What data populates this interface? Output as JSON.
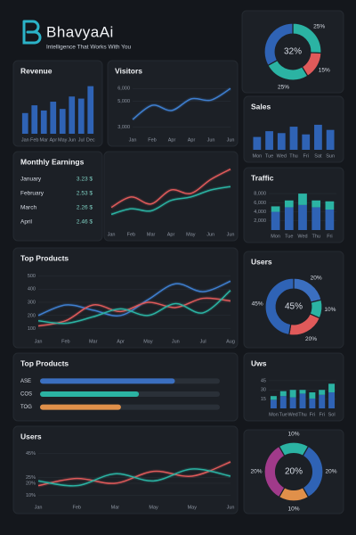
{
  "header": {
    "title": "BhavyaAi",
    "tagline": "Intelligence That Works With You"
  },
  "earnings": {
    "title": "Monthly Earnings",
    "rows": [
      {
        "month": "January",
        "amount": "3.23 $"
      },
      {
        "month": "February",
        "amount": "2.53 $"
      },
      {
        "month": "March",
        "amount": "2.26 $"
      },
      {
        "month": "April",
        "amount": "2.46 $"
      }
    ]
  },
  "chart_data": [
    {
      "type": "pie",
      "center_label": "32%",
      "values": [
        25,
        15,
        25,
        32
      ],
      "value_labels": [
        "25%",
        "15%",
        "25%",
        null
      ],
      "colors": [
        "#2bb3a3",
        "#e05a5a",
        "#2bb3a3",
        "#2f63b5"
      ]
    },
    {
      "type": "bar",
      "title": "Revenue",
      "categories": [
        "Jan",
        "Feb",
        "Mar",
        "Apr",
        "May",
        "Jun",
        "Jul",
        "Dec"
      ],
      "ylim": [
        0,
        100
      ],
      "series": [
        {
          "color": "#2f63b5",
          "values": [
            40,
            55,
            45,
            62,
            48,
            72,
            68,
            92
          ]
        }
      ]
    },
    {
      "type": "line",
      "title": "Visitors",
      "categories": [
        "Jan",
        "Feb",
        "Apr",
        "Apr",
        "Jun",
        "Jun"
      ],
      "ylim": [
        2500,
        6500
      ],
      "yticks": [
        {
          "value": 3000,
          "label": "3,000"
        },
        {
          "value": 5000,
          "label": "5,000"
        },
        {
          "value": 6000,
          "label": "6,000"
        }
      ],
      "series": [
        {
          "color": "#3f7fd0",
          "values": [
            3600,
            4700,
            4300,
            5200,
            5100,
            6000
          ]
        }
      ]
    },
    {
      "type": "bar",
      "title": "Sales",
      "categories": [
        "Mon",
        "Tue",
        "Wed",
        "Thu",
        "Fri",
        "Sat",
        "Sun"
      ],
      "ylim": [
        0,
        100
      ],
      "series": [
        {
          "color": "#2f63b5",
          "values": [
            40,
            58,
            52,
            72,
            48,
            78,
            62
          ]
        }
      ]
    },
    {
      "type": "line",
      "categories": [
        "Jan",
        "Feb",
        "Mar",
        "Apr",
        "May",
        "Jun",
        "Jun"
      ],
      "ylim": [
        0,
        100
      ],
      "series": [
        {
          "color": "#e05a5a",
          "values": [
            30,
            45,
            35,
            55,
            50,
            70,
            85
          ]
        },
        {
          "color": "#2bb3a3",
          "values": [
            20,
            28,
            25,
            40,
            45,
            55,
            60
          ]
        }
      ]
    },
    {
      "type": "bar",
      "title": "Traffic",
      "categories": [
        "Mon",
        "Tue",
        "Wed",
        "Thu",
        "Fri"
      ],
      "ylim": [
        0,
        9000
      ],
      "yticks": [
        {
          "value": 2000,
          "label": "2,000"
        },
        {
          "value": 4000,
          "label": "4,000"
        },
        {
          "value": 6000,
          "label": "6,000"
        },
        {
          "value": 8000,
          "label": "8,000"
        }
      ],
      "series": [
        {
          "color": "#2f63b5",
          "values": [
            4000,
            5000,
            5500,
            5000,
            4500
          ]
        },
        {
          "color": "#2bb3a3",
          "values": [
            1200,
            1500,
            2500,
            1500,
            1800
          ]
        }
      ]
    },
    {
      "type": "line",
      "title": "Top Products",
      "categories": [
        "Jan",
        "Feb",
        "Mar",
        "Apr",
        "May",
        "Jun",
        "Jul",
        "Aug"
      ],
      "ylim": [
        50,
        550
      ],
      "yticks": [
        100,
        200,
        300,
        400,
        500
      ],
      "series": [
        {
          "color": "#3f7fd0",
          "values": [
            200,
            280,
            240,
            200,
            320,
            440,
            380,
            460
          ]
        },
        {
          "color": "#e05a5a",
          "values": [
            120,
            160,
            280,
            230,
            300,
            260,
            330,
            310
          ]
        },
        {
          "color": "#2bb3a3",
          "values": [
            160,
            140,
            190,
            250,
            200,
            290,
            220,
            390
          ]
        }
      ]
    },
    {
      "type": "pie",
      "title": "Users",
      "center_label": "45%",
      "values": [
        20,
        10,
        20,
        45
      ],
      "value_labels": [
        "20%",
        "10%",
        "20%",
        "45%"
      ],
      "colors": [
        "#3b6fc0",
        "#2bb3a3",
        "#e05a5a",
        "#2f63b5"
      ]
    },
    {
      "type": "hbar",
      "title": "Top Products",
      "categories": [
        "ASE",
        "COS",
        "TOG"
      ],
      "xlim": [
        0,
        100
      ],
      "values": [
        75,
        55,
        45
      ],
      "colors": [
        "#3b6fc0",
        "#2bb3a3",
        "#e0904a"
      ]
    },
    {
      "type": "bar",
      "title": "Uws",
      "categories": [
        "Mon",
        "Tue",
        "Wed",
        "Thu",
        "Fri",
        "Fri",
        "Sol"
      ],
      "ylim": [
        0,
        55
      ],
      "yticks": [
        15,
        30,
        45
      ],
      "series": [
        {
          "color": "#2f63b5",
          "values": [
            14,
            20,
            18,
            24,
            16,
            22,
            26
          ]
        },
        {
          "color": "#2bb3a3",
          "values": [
            6,
            8,
            12,
            6,
            10,
            8,
            14
          ]
        }
      ]
    },
    {
      "type": "line",
      "title": "Users",
      "categories": [
        "Jan",
        "Feb",
        "Mar",
        "May",
        "May",
        "Jun"
      ],
      "ylim": [
        5,
        50
      ],
      "yticks": [
        {
          "value": 10,
          "label": "10%"
        },
        {
          "value": 20,
          "label": "20%"
        },
        {
          "value": 25,
          "label": "25%"
        },
        {
          "value": 45,
          "label": "45%"
        }
      ],
      "series": [
        {
          "color": "#e05a5a",
          "values": [
            18,
            24,
            20,
            30,
            26,
            38
          ]
        },
        {
          "color": "#2bb3a3",
          "values": [
            22,
            18,
            28,
            22,
            32,
            26
          ]
        }
      ]
    },
    {
      "type": "pie",
      "center_label": "20%",
      "values": [
        20,
        10,
        20,
        10
      ],
      "value_labels": [
        "20%",
        "10%",
        "20%",
        "10%"
      ],
      "colors": [
        "#2f63b5",
        "#e0904a",
        "#a03a8a",
        "#2bb3a3"
      ]
    }
  ]
}
